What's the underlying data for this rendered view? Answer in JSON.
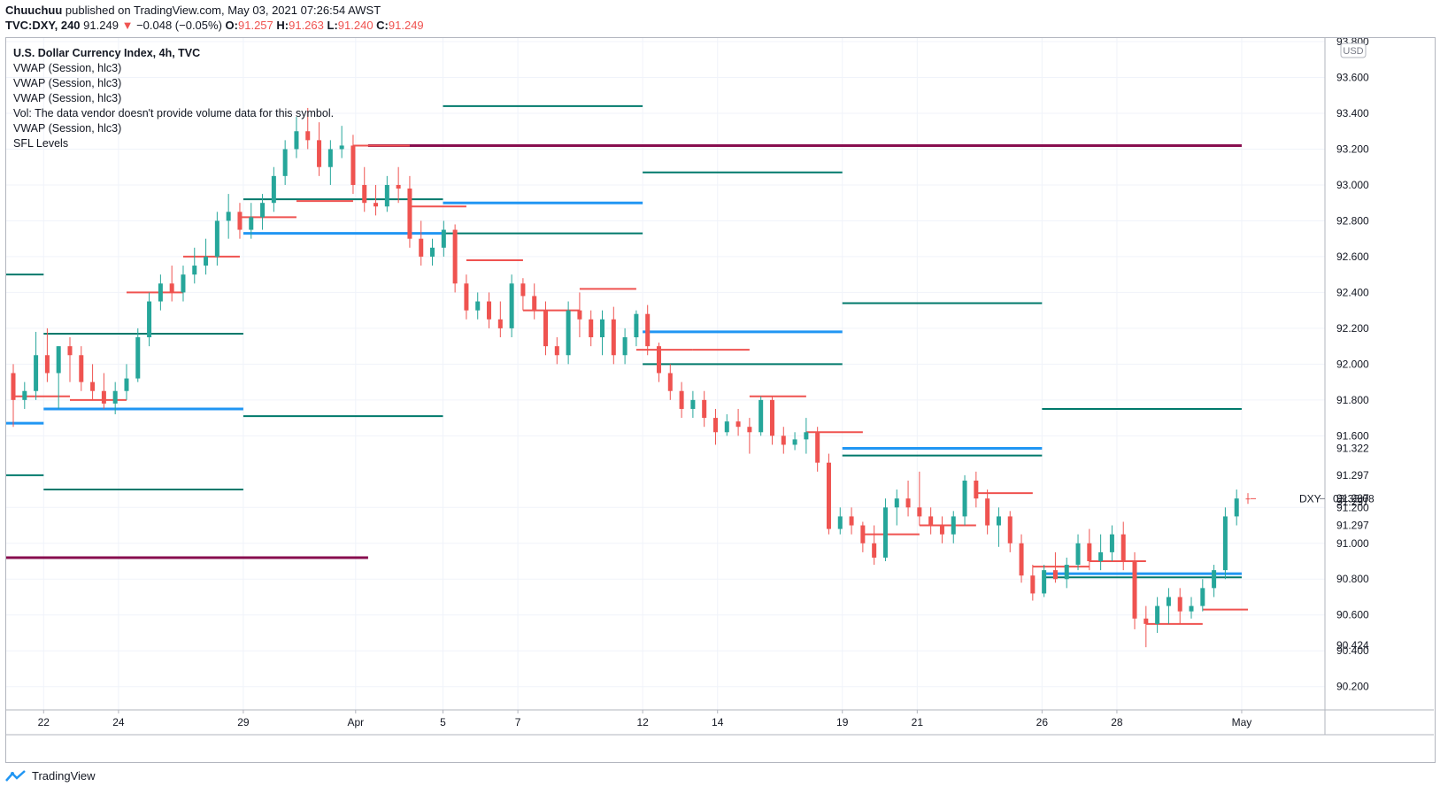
{
  "header": {
    "publisher": "Chuuchuu",
    "published_text": "published on TradingView.com, May 03, 2021 07:26:54 AWST",
    "symbol": "TVC:DXY, 240",
    "last": "91.249",
    "change": "−0.048 (−0.05%)",
    "o_label": "O:",
    "o": "91.257",
    "h_label": "H:",
    "h": "91.263",
    "l_label": "L:",
    "l": "91.240",
    "c_label": "C:",
    "c": "91.249"
  },
  "legend": {
    "title": "U.S. Dollar Currency Index, 4h, TVC",
    "lines": [
      "VWAP (Session, hlc3)",
      "VWAP (Session, hlc3)",
      "VWAP (Session, hlc3)",
      "Vol: The data vendor doesn't provide volume data for this symbol.",
      "VWAP (Session, hlc3)",
      "SFL Levels"
    ]
  },
  "footer": {
    "brand": "TradingView"
  },
  "colors": {
    "up": "#26a69a",
    "down": "#ef5350",
    "vwap_blue": "#2196f3",
    "teal_level": "#00796b",
    "maroon_level": "#880e4f",
    "grid": "#f0f3fa"
  },
  "chart_data": {
    "type": "candlestick",
    "currency": "USD",
    "price_ticks": [
      93.8,
      93.6,
      93.4,
      93.2,
      93.0,
      92.8,
      92.6,
      92.4,
      92.2,
      92.0,
      91.8,
      91.6,
      91.2,
      91.0,
      90.8,
      90.6,
      90.4,
      90.2
    ],
    "price_tick_labels": [
      "93.800",
      "93.600",
      "93.400",
      "93.200",
      "93.000",
      "92.800",
      "92.600",
      "92.400",
      "92.200",
      "92.000",
      "91.800",
      "91.600",
      "91.200",
      "91.000",
      "90.800",
      "90.600",
      "90.400",
      "90.200"
    ],
    "right_markers": [
      {
        "label": "91.322",
        "price": 91.53
      },
      {
        "label": "91.297",
        "price": 91.38
      },
      {
        "label": "91.297",
        "price": 91.25
      },
      {
        "label": "91.297",
        "price": 91.23
      },
      {
        "label": "91.297",
        "price": 91.1
      },
      {
        "label": "90.424",
        "price": 90.43
      }
    ],
    "current_price_label": "DXY",
    "countdown": "03:33:08",
    "current_price": 91.249,
    "ylim": [
      90.07,
      93.82
    ],
    "x_tick_labels": [
      {
        "label": "22",
        "t": 3
      },
      {
        "label": "24",
        "t": 9
      },
      {
        "label": "29",
        "t": 19
      },
      {
        "label": "Apr",
        "t": 28
      },
      {
        "label": "5",
        "t": 35
      },
      {
        "label": "7",
        "t": 41
      },
      {
        "label": "12",
        "t": 51
      },
      {
        "label": "14",
        "t": 57
      },
      {
        "label": "19",
        "t": 67
      },
      {
        "label": "21",
        "t": 73
      },
      {
        "label": "26",
        "t": 83
      },
      {
        "label": "28",
        "t": 89
      },
      {
        "label": "May",
        "t": 99
      }
    ],
    "x_range": [
      0,
      110
    ],
    "candles": [
      [
        91.95,
        92.0,
        91.65,
        91.8
      ],
      [
        91.8,
        91.9,
        91.75,
        91.85
      ],
      [
        91.85,
        92.18,
        91.8,
        92.05
      ],
      [
        92.05,
        92.2,
        91.9,
        91.95
      ],
      [
        91.95,
        92.1,
        91.75,
        92.1
      ],
      [
        92.1,
        92.15,
        91.9,
        92.05
      ],
      [
        92.05,
        92.1,
        91.85,
        91.9
      ],
      [
        91.9,
        92.0,
        91.8,
        91.85
      ],
      [
        91.85,
        91.95,
        91.75,
        91.78
      ],
      [
        91.78,
        91.9,
        91.72,
        91.85
      ],
      [
        91.85,
        92.0,
        91.8,
        91.92
      ],
      [
        91.92,
        92.2,
        91.9,
        92.15
      ],
      [
        92.15,
        92.4,
        92.1,
        92.35
      ],
      [
        92.35,
        92.5,
        92.3,
        92.45
      ],
      [
        92.45,
        92.55,
        92.35,
        92.4
      ],
      [
        92.4,
        92.55,
        92.35,
        92.5
      ],
      [
        92.5,
        92.65,
        92.45,
        92.55
      ],
      [
        92.55,
        92.7,
        92.5,
        92.6
      ],
      [
        92.6,
        92.85,
        92.55,
        92.8
      ],
      [
        92.8,
        92.95,
        92.7,
        92.85
      ],
      [
        92.85,
        92.9,
        92.7,
        92.75
      ],
      [
        92.75,
        92.9,
        92.7,
        92.82
      ],
      [
        92.82,
        92.95,
        92.75,
        92.9
      ],
      [
        92.9,
        93.1,
        92.85,
        93.05
      ],
      [
        93.05,
        93.25,
        93.0,
        93.2
      ],
      [
        93.2,
        93.38,
        93.15,
        93.3
      ],
      [
        93.3,
        93.43,
        93.2,
        93.25
      ],
      [
        93.25,
        93.35,
        93.05,
        93.1
      ],
      [
        93.1,
        93.25,
        93.0,
        93.2
      ],
      [
        93.2,
        93.33,
        93.15,
        93.22
      ],
      [
        93.22,
        93.28,
        92.95,
        93.0
      ],
      [
        93.0,
        93.1,
        92.85,
        92.9
      ],
      [
        92.9,
        93.0,
        92.83,
        92.88
      ],
      [
        92.88,
        93.05,
        92.85,
        93.0
      ],
      [
        93.0,
        93.1,
        92.9,
        92.98
      ],
      [
        92.98,
        93.05,
        92.65,
        92.7
      ],
      [
        92.7,
        92.8,
        92.55,
        92.6
      ],
      [
        92.6,
        92.7,
        92.55,
        92.65
      ],
      [
        92.65,
        92.8,
        92.6,
        92.75
      ],
      [
        92.75,
        92.78,
        92.4,
        92.45
      ],
      [
        92.45,
        92.5,
        92.25,
        92.3
      ],
      [
        92.3,
        92.4,
        92.25,
        92.35
      ],
      [
        92.35,
        92.4,
        92.2,
        92.25
      ],
      [
        92.25,
        92.35,
        92.15,
        92.2
      ],
      [
        92.2,
        92.5,
        92.15,
        92.45
      ],
      [
        92.45,
        92.48,
        92.3,
        92.38
      ],
      [
        92.38,
        92.45,
        92.25,
        92.3
      ],
      [
        92.3,
        92.35,
        92.05,
        92.1
      ],
      [
        92.1,
        92.15,
        92.0,
        92.05
      ],
      [
        92.05,
        92.35,
        92.0,
        92.3
      ],
      [
        92.3,
        92.4,
        92.15,
        92.25
      ],
      [
        92.25,
        92.3,
        92.1,
        92.15
      ],
      [
        92.15,
        92.3,
        92.05,
        92.25
      ],
      [
        92.25,
        92.32,
        92.0,
        92.05
      ],
      [
        92.05,
        92.2,
        92.0,
        92.15
      ],
      [
        92.15,
        92.3,
        92.1,
        92.28
      ],
      [
        92.28,
        92.33,
        92.05,
        92.1
      ],
      [
        92.1,
        92.12,
        91.9,
        91.95
      ],
      [
        91.95,
        92.0,
        91.8,
        91.85
      ],
      [
        91.85,
        91.9,
        91.7,
        91.75
      ],
      [
        91.75,
        91.85,
        91.7,
        91.8
      ],
      [
        91.8,
        91.85,
        91.65,
        91.7
      ],
      [
        91.7,
        91.75,
        91.55,
        91.62
      ],
      [
        91.62,
        91.72,
        91.6,
        91.68
      ],
      [
        91.68,
        91.75,
        91.6,
        91.65
      ],
      [
        91.65,
        91.7,
        91.5,
        91.62
      ],
      [
        91.62,
        91.82,
        91.6,
        91.8
      ],
      [
        91.8,
        91.82,
        91.55,
        91.6
      ],
      [
        91.6,
        91.65,
        91.5,
        91.55
      ],
      [
        91.55,
        91.62,
        91.52,
        91.58
      ],
      [
        91.58,
        91.7,
        91.5,
        91.62
      ],
      [
        91.62,
        91.65,
        91.4,
        91.45
      ],
      [
        91.45,
        91.5,
        91.05,
        91.08
      ],
      [
        91.08,
        91.2,
        91.05,
        91.15
      ],
      [
        91.15,
        91.2,
        91.05,
        91.1
      ],
      [
        91.1,
        91.12,
        90.95,
        91.0
      ],
      [
        91.0,
        91.1,
        90.88,
        90.92
      ],
      [
        90.92,
        91.25,
        90.9,
        91.2
      ],
      [
        91.2,
        91.3,
        91.1,
        91.25
      ],
      [
        91.25,
        91.35,
        91.15,
        91.2
      ],
      [
        91.2,
        91.4,
        91.1,
        91.15
      ],
      [
        91.15,
        91.2,
        91.05,
        91.1
      ],
      [
        91.1,
        91.15,
        91.0,
        91.05
      ],
      [
        91.05,
        91.18,
        91.0,
        91.15
      ],
      [
        91.15,
        91.38,
        91.1,
        91.35
      ],
      [
        91.35,
        91.4,
        91.2,
        91.25
      ],
      [
        91.25,
        91.3,
        91.05,
        91.1
      ],
      [
        91.1,
        91.2,
        90.98,
        91.15
      ],
      [
        91.15,
        91.18,
        90.95,
        91.0
      ],
      [
        91.0,
        91.05,
        90.78,
        90.82
      ],
      [
        90.82,
        90.88,
        90.68,
        90.72
      ],
      [
        90.72,
        90.88,
        90.7,
        90.85
      ],
      [
        90.85,
        90.95,
        90.78,
        90.8
      ],
      [
        90.8,
        90.92,
        90.75,
        90.88
      ],
      [
        90.88,
        91.05,
        90.85,
        91.0
      ],
      [
        91.0,
        91.08,
        90.85,
        90.9
      ],
      [
        90.9,
        91.05,
        90.85,
        90.95
      ],
      [
        90.95,
        91.1,
        90.9,
        91.05
      ],
      [
        91.05,
        91.12,
        90.85,
        90.9
      ],
      [
        90.9,
        90.95,
        90.52,
        90.58
      ],
      [
        90.58,
        90.65,
        90.42,
        90.55
      ],
      [
        90.55,
        90.7,
        90.5,
        90.65
      ],
      [
        90.65,
        90.75,
        90.55,
        90.7
      ],
      [
        90.7,
        90.75,
        90.55,
        90.62
      ],
      [
        90.62,
        90.7,
        90.58,
        90.65
      ],
      [
        90.65,
        90.8,
        90.62,
        90.75
      ],
      [
        90.75,
        90.88,
        90.7,
        90.85
      ],
      [
        90.85,
        91.2,
        90.8,
        91.15
      ],
      [
        91.15,
        91.3,
        91.1,
        91.25
      ],
      [
        91.25,
        91.28,
        91.22,
        91.249
      ]
    ],
    "vwap_segments": [
      {
        "x0": 0,
        "x1": 6,
        "price": 91.82,
        "color": "#ef5350"
      },
      {
        "x0": 6,
        "x1": 12,
        "price": 91.8,
        "color": "#ef5350"
      },
      {
        "x0": 12,
        "x1": 18,
        "price": 92.4,
        "color": "#ef5350"
      },
      {
        "x0": 18,
        "x1": 24,
        "price": 92.6,
        "color": "#ef5350"
      },
      {
        "x0": 24,
        "x1": 30,
        "price": 92.82,
        "color": "#ef5350"
      },
      {
        "x0": 30,
        "x1": 36,
        "price": 92.91,
        "color": "#ef5350"
      },
      {
        "x0": 36,
        "x1": 42,
        "price": 93.22,
        "color": "#ef5350"
      },
      {
        "x0": 42,
        "x1": 48,
        "price": 92.88,
        "color": "#ef5350"
      },
      {
        "x0": 48,
        "x1": 54,
        "price": 92.58,
        "color": "#ef5350"
      },
      {
        "x0": 54,
        "x1": 60,
        "price": 92.3,
        "color": "#ef5350"
      },
      {
        "x0": 60,
        "x1": 66,
        "price": 92.42,
        "color": "#ef5350"
      },
      {
        "x0": 66,
        "x1": 72,
        "price": 92.08,
        "color": "#ef5350"
      },
      {
        "x0": 72,
        "x1": 78,
        "price": 92.08,
        "color": "#ef5350"
      },
      {
        "x0": 78,
        "x1": 84,
        "price": 91.82,
        "color": "#ef5350"
      },
      {
        "x0": 84,
        "x1": 90,
        "price": 91.62,
        "color": "#ef5350"
      },
      {
        "x0": 90,
        "x1": 96,
        "price": 91.05,
        "color": "#ef5350"
      },
      {
        "x0": 96,
        "x1": 102,
        "price": 91.1,
        "color": "#ef5350"
      },
      {
        "x0": 102,
        "x1": 108,
        "price": 91.28,
        "color": "#ef5350"
      },
      {
        "x0": 108,
        "x1": 114,
        "price": 90.87,
        "color": "#ef5350"
      },
      {
        "x0": 114,
        "x1": 120,
        "price": 90.9,
        "color": "#ef5350"
      },
      {
        "x0": 120,
        "x1": 126,
        "price": 90.55,
        "color": "#ef5350"
      },
      {
        "x0": 126,
        "x1": 132,
        "price": 90.63,
        "color": "#ef5350"
      }
    ],
    "levels": [
      {
        "x0": 0,
        "x1": 3,
        "price": 92.5,
        "color": "#00796b",
        "w": 2
      },
      {
        "x0": 0,
        "x1": 3,
        "price": 91.67,
        "color": "#2196f3",
        "w": 3
      },
      {
        "x0": 0,
        "x1": 3,
        "price": 91.38,
        "color": "#00796b",
        "w": 2
      },
      {
        "x0": 0,
        "x1": 29,
        "price": 90.92,
        "color": "#880e4f",
        "w": 3
      },
      {
        "x0": 3,
        "x1": 19,
        "price": 92.17,
        "color": "#00796b",
        "w": 2
      },
      {
        "x0": 3,
        "x1": 19,
        "price": 91.75,
        "color": "#2196f3",
        "w": 3
      },
      {
        "x0": 3,
        "x1": 19,
        "price": 91.3,
        "color": "#00796b",
        "w": 2
      },
      {
        "x0": 19,
        "x1": 35,
        "price": 92.92,
        "color": "#00796b",
        "w": 2
      },
      {
        "x0": 19,
        "x1": 35,
        "price": 92.73,
        "color": "#2196f3",
        "w": 3
      },
      {
        "x0": 19,
        "x1": 35,
        "price": 91.71,
        "color": "#00796b",
        "w": 2
      },
      {
        "x0": 29,
        "x1": 99,
        "price": 93.22,
        "color": "#880e4f",
        "w": 3
      },
      {
        "x0": 35,
        "x1": 51,
        "price": 93.44,
        "color": "#00796b",
        "w": 2
      },
      {
        "x0": 35,
        "x1": 51,
        "price": 92.9,
        "color": "#2196f3",
        "w": 3
      },
      {
        "x0": 35,
        "x1": 51,
        "price": 92.73,
        "color": "#00796b",
        "w": 2
      },
      {
        "x0": 51,
        "x1": 67,
        "price": 93.07,
        "color": "#00796b",
        "w": 2
      },
      {
        "x0": 51,
        "x1": 67,
        "price": 92.18,
        "color": "#2196f3",
        "w": 3
      },
      {
        "x0": 51,
        "x1": 67,
        "price": 92.0,
        "color": "#00796b",
        "w": 2
      },
      {
        "x0": 67,
        "x1": 83,
        "price": 92.34,
        "color": "#00796b",
        "w": 2
      },
      {
        "x0": 67,
        "x1": 83,
        "price": 91.53,
        "color": "#2196f3",
        "w": 3
      },
      {
        "x0": 67,
        "x1": 83,
        "price": 91.49,
        "color": "#00796b",
        "w": 2
      },
      {
        "x0": 83,
        "x1": 99,
        "price": 91.75,
        "color": "#00796b",
        "w": 2
      },
      {
        "x0": 83,
        "x1": 99,
        "price": 90.83,
        "color": "#2196f3",
        "w": 3
      },
      {
        "x0": 83,
        "x1": 99,
        "price": 90.81,
        "color": "#00796b",
        "w": 2
      }
    ]
  }
}
